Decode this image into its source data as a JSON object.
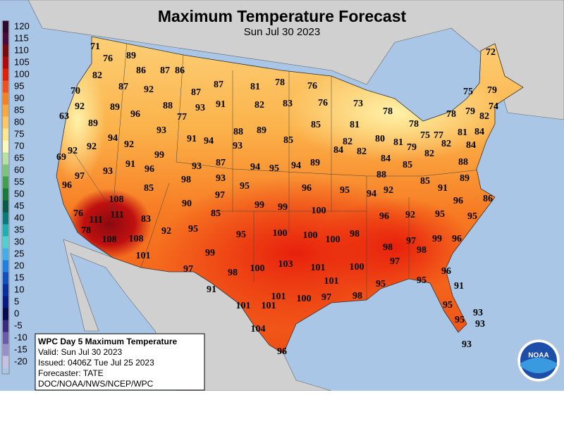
{
  "header": {
    "title": "Maximum Temperature Forecast",
    "subtitle": "Sun Jul 30 2023"
  },
  "legend": {
    "ticks": [
      120,
      115,
      110,
      105,
      100,
      95,
      90,
      85,
      80,
      75,
      70,
      65,
      60,
      55,
      50,
      45,
      40,
      35,
      30,
      25,
      20,
      15,
      10,
      5,
      0,
      -5,
      -10,
      -15,
      -20
    ],
    "colors": [
      "#2d0a2e",
      "#4b0a3a",
      "#7a0a10",
      "#b00a0a",
      "#e0200a",
      "#f0501a",
      "#f8801e",
      "#fba83a",
      "#fdc860",
      "#fee68a",
      "#fef8b8",
      "#b8e0a0",
      "#7cc47a",
      "#40a050",
      "#1a7a3a",
      "#0a5a4a",
      "#0a7a7a",
      "#20b0b0",
      "#50d0d0",
      "#40b0e8",
      "#2080e0",
      "#1050c0",
      "#0a30a0",
      "#0a1a80",
      "#0a0a50",
      "#3a2a80",
      "#6a5aa8",
      "#9a90c8",
      "#c8c0e0"
    ]
  },
  "stations": {
    "values": [
      71,
      76,
      89,
      86,
      87,
      86,
      72,
      82,
      78,
      87,
      92,
      87,
      87,
      81,
      76,
      70,
      75,
      79,
      92,
      89,
      96,
      88,
      93,
      91,
      82,
      83,
      76,
      73,
      78,
      78,
      79,
      74,
      82,
      63,
      89,
      77,
      85,
      81,
      78,
      81,
      84,
      93,
      88,
      89,
      75,
      77,
      79,
      94,
      92,
      91,
      94,
      85,
      82,
      80,
      81,
      82,
      84,
      92,
      93,
      84,
      82,
      82,
      69,
      92,
      99,
      84,
      85,
      88,
      91,
      96,
      93,
      87,
      94,
      95,
      94,
      89,
      88,
      97,
      93,
      98,
      93,
      85,
      89,
      96,
      85,
      95,
      96,
      95,
      94,
      92,
      91,
      108,
      97,
      96,
      86,
      90,
      99,
      99,
      85,
      100,
      76,
      111,
      111,
      83,
      96,
      92,
      95,
      95,
      78,
      92,
      95,
      95,
      100,
      100,
      100,
      98,
      97,
      99,
      96,
      108,
      108,
      98,
      98,
      101,
      99,
      97,
      97,
      98,
      100,
      103,
      101,
      100,
      96,
      101,
      95,
      95,
      91,
      91,
      98,
      97,
      101,
      101,
      101,
      100,
      95,
      93,
      95,
      93,
      104,
      93,
      96
    ]
  },
  "info_box": {
    "lines": [
      "WPC Day 5 Maximum Temperature",
      "Valid: Sun Jul 30 2023",
      "Issued: 0406Z Tue Jul 25 2023",
      "Forecaster: TATE",
      "DOC/NOAA/NWS/NCEP/WPC"
    ]
  },
  "logo": {
    "text": "NOAA"
  }
}
